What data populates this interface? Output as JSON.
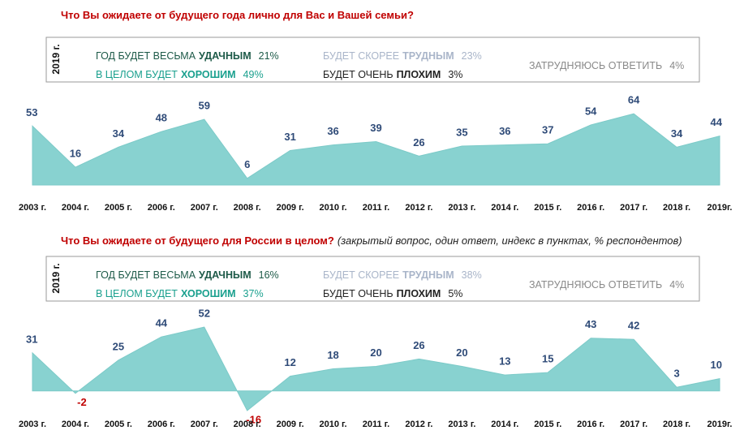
{
  "chart_data": [
    {
      "type": "area",
      "title": "Что Вы ожидаете от будущего года лично для Вас и Вашей семьи?",
      "legend": {
        "title": "2019 г.",
        "items": [
          {
            "text": "ГОД БУДЕТ ВЕСЬМА",
            "emphasis": "УДАЧНЫМ",
            "value": "21%",
            "color": "#1d5a48"
          },
          {
            "text": "В ЦЕЛОМ БУДЕТ",
            "emphasis": "ХОРОШИМ",
            "value": "49%",
            "color": "#1aa08e"
          },
          {
            "text": "БУДЕТ СКОРЕЕ",
            "emphasis": "ТРУДНЫМ",
            "value": "23%",
            "color": "#a9b5c9"
          },
          {
            "text": "БУДЕТ ОЧЕНЬ",
            "emphasis": "ПЛОХИМ",
            "value": "3%",
            "color": "#222222"
          },
          {
            "text": "ЗАТРУДНЯЮСЬ ОТВЕТИТЬ",
            "value": "4%",
            "color": "#8a8a8a"
          }
        ]
      },
      "categories": [
        "2003 г.",
        "2004 г.",
        "2005 г.",
        "2006 г.",
        "2007 г.",
        "2008 г.",
        "2009 г.",
        "2010 г.",
        "2011 г.",
        "2012 г.",
        "2013 г.",
        "2014 г.",
        "2015 г.",
        "2016 г.",
        "2017 г.",
        "2018 г.",
        "2019г."
      ],
      "values": [
        53,
        16,
        34,
        48,
        59,
        6,
        31,
        36,
        39,
        26,
        35,
        36,
        37,
        54,
        64,
        34,
        44
      ],
      "color": "#88d2d0",
      "ylim": [
        0,
        70
      ]
    },
    {
      "type": "area",
      "title": "Что Вы ожидаете от будущего для России в целом?",
      "subtitle": "(закрытый вопрос, один ответ, индекс в пунктах, % респондентов)",
      "legend": {
        "title": "2019 г.",
        "items": [
          {
            "text": "ГОД БУДЕТ ВЕСЬМА",
            "emphasis": "УДАЧНЫМ",
            "value": "16%",
            "color": "#1d5a48"
          },
          {
            "text": "В ЦЕЛОМ БУДЕТ",
            "emphasis": "ХОРОШИМ",
            "value": "37%",
            "color": "#1aa08e"
          },
          {
            "text": "БУДЕТ СКОРЕЕ",
            "emphasis": "ТРУДНЫМ",
            "value": "38%",
            "color": "#a9b5c9"
          },
          {
            "text": "БУДЕТ ОЧЕНЬ",
            "emphasis": "ПЛОХИМ",
            "value": "5%",
            "color": "#222222"
          },
          {
            "text": "ЗАТРУДНЯЮСЬ ОТВЕТИТЬ",
            "value": "4%",
            "color": "#8a8a8a"
          }
        ]
      },
      "categories": [
        "2003 г.",
        "2004 г.",
        "2005 г.",
        "2006 г.",
        "2007 г.",
        "2008 г.",
        "2009 г.",
        "2010 г.",
        "2011 г.",
        "2012 г.",
        "2013 г.",
        "2014 г.",
        "2015 г.",
        "2016 г.",
        "2017 г.",
        "2018 г.",
        "2019г."
      ],
      "values": [
        31,
        -2,
        25,
        44,
        52,
        -16,
        12,
        18,
        20,
        26,
        20,
        13,
        15,
        43,
        42,
        3,
        10
      ],
      "color": "#88d2d0",
      "ylim": [
        -20,
        60
      ]
    }
  ]
}
